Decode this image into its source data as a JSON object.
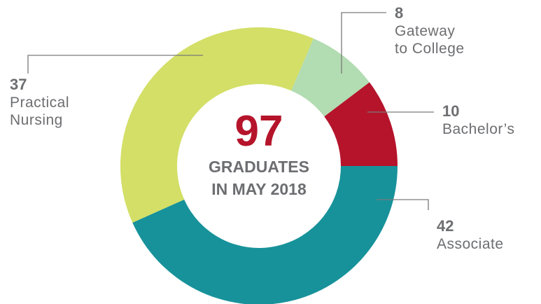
{
  "chart_data": {
    "type": "pie",
    "variant": "donut",
    "center": {
      "total": "97",
      "caption_lines": [
        "GRADUATES",
        "IN MAY 2018"
      ]
    },
    "slices": [
      {
        "label_lines": [
          "Associate"
        ],
        "value": 42,
        "color": "#17929a"
      },
      {
        "label_lines": [
          "Practical",
          "Nursing"
        ],
        "value": 37,
        "color": "#d3df66"
      },
      {
        "label_lines": [
          "Gateway",
          "to College"
        ],
        "value": 8,
        "color": "#b2dcb2"
      },
      {
        "label_lines": [
          "Bachelor’s"
        ],
        "value": 10,
        "color": "#b5142b"
      }
    ],
    "colors": {
      "total_text": "#b5142b",
      "label_text": "#6d6e71",
      "leader_line": "#7a7a7a"
    }
  }
}
